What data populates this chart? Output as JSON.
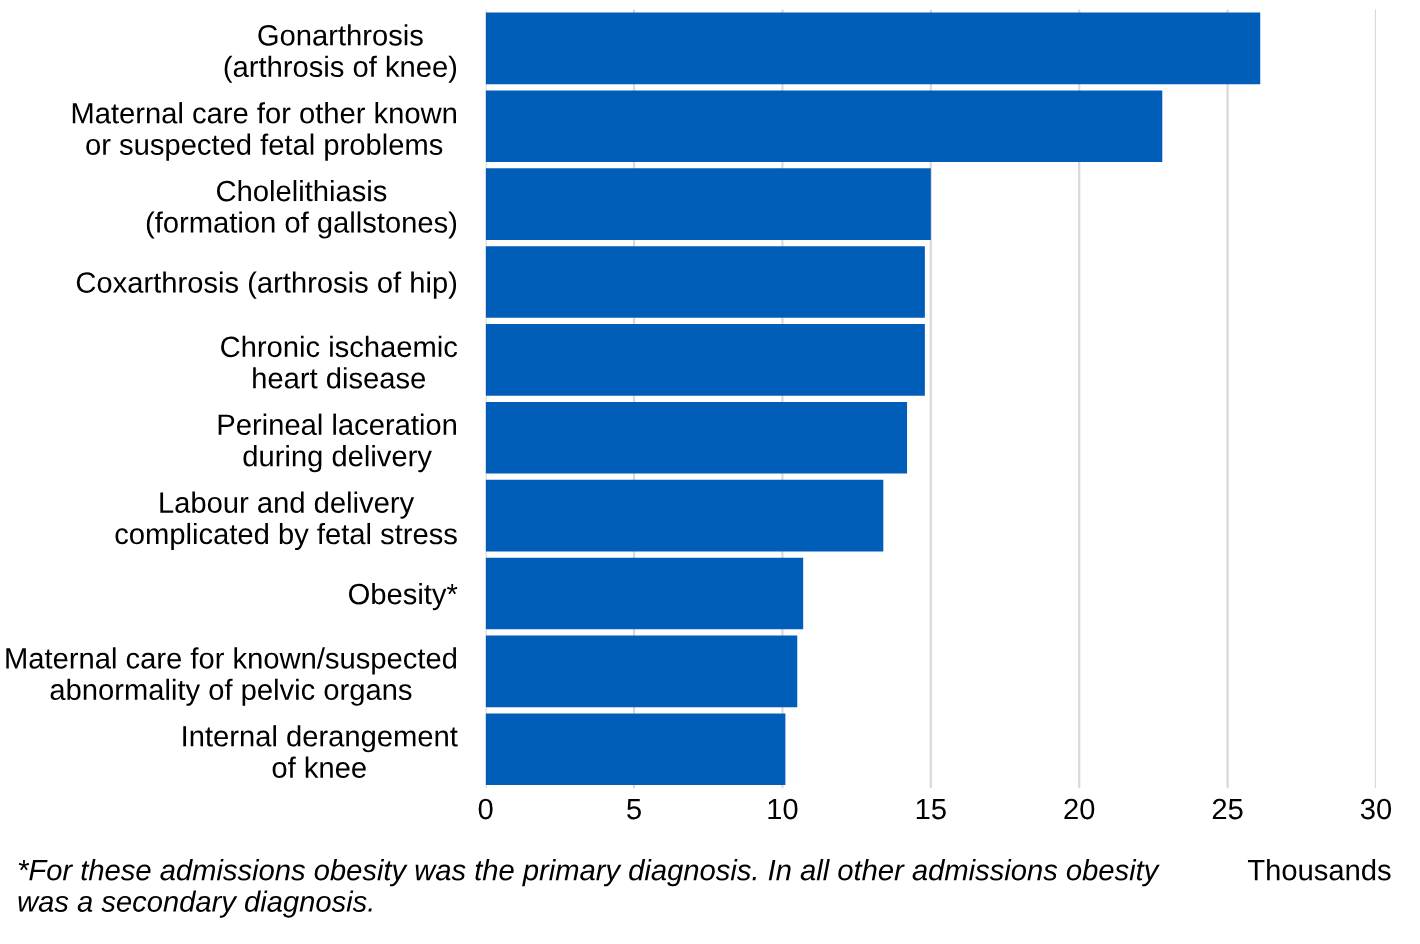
{
  "chart_data": {
    "type": "bar",
    "orientation": "horizontal",
    "categories": [
      "Gonarthrosis\n(arthrosis of knee)",
      "Maternal care for other known\nor suspected fetal problems",
      "Cholelithiasis\n(formation of gallstones)",
      "Coxarthrosis (arthrosis of hip)",
      "Chronic ischaemic\nheart disease",
      "Perineal laceration\nduring delivery",
      "Labour and delivery\ncomplicated by fetal stress",
      "Obesity*",
      "Maternal care for known/suspected\nabnormality of pelvic organs",
      "Internal derangement\nof knee"
    ],
    "values": [
      26.1,
      22.8,
      15.0,
      14.8,
      14.8,
      14.2,
      13.4,
      10.7,
      10.5,
      10.1
    ],
    "color": "#005eb8",
    "xlabel": "Thousands",
    "xlim": [
      0,
      30
    ],
    "xticks": [
      0,
      5,
      10,
      15,
      20,
      25,
      30
    ],
    "grid": "x",
    "annotations": [
      "*For these admissions obesity was the primary diagnosis. In all other admissions obesity was a secondary diagnosis."
    ]
  }
}
